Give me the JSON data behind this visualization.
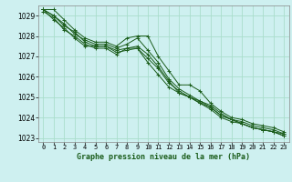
{
  "title": "Graphe pression niveau de la mer (hPa)",
  "background_color": "#cef0f0",
  "grid_color": "#aaddcc",
  "line_color": "#1a5c1a",
  "xlim": [
    -0.5,
    23.5
  ],
  "ylim": [
    1022.8,
    1029.5
  ],
  "yticks": [
    1023,
    1024,
    1025,
    1026,
    1027,
    1028,
    1029
  ],
  "xticks": [
    0,
    1,
    2,
    3,
    4,
    5,
    6,
    7,
    8,
    9,
    10,
    11,
    12,
    13,
    14,
    15,
    16,
    17,
    18,
    19,
    20,
    21,
    22,
    23
  ],
  "series": [
    {
      "x": [
        0,
        1,
        2,
        3,
        4,
        5,
        6,
        7,
        8,
        9,
        10,
        11,
        12,
        13,
        14,
        15,
        16,
        17,
        18,
        19,
        20,
        21,
        22,
        23
      ],
      "y": [
        1029.3,
        1029.3,
        1028.8,
        1028.3,
        1027.9,
        1027.7,
        1027.7,
        1027.5,
        1027.9,
        1028.0,
        1028.0,
        1027.0,
        1026.3,
        1025.6,
        1025.6,
        1025.3,
        1024.7,
        1024.3,
        1024.0,
        1023.9,
        1023.7,
        1023.6,
        1023.5,
        1023.3
      ]
    },
    {
      "x": [
        0,
        1,
        2,
        3,
        4,
        5,
        6,
        7,
        8,
        9,
        10,
        11,
        12,
        13,
        14,
        15,
        16,
        17,
        18,
        19,
        20,
        21,
        22,
        23
      ],
      "y": [
        1029.3,
        1029.0,
        1028.6,
        1028.1,
        1027.8,
        1027.6,
        1027.6,
        1027.4,
        1027.6,
        1027.9,
        1027.3,
        1026.7,
        1025.9,
        1025.4,
        1025.1,
        1024.8,
        1024.5,
        1024.1,
        1023.9,
        1023.7,
        1023.5,
        1023.4,
        1023.3,
        1023.2
      ]
    },
    {
      "x": [
        0,
        1,
        2,
        3,
        4,
        5,
        6,
        7,
        8,
        9,
        10,
        11,
        12,
        13,
        14,
        15,
        16,
        17,
        18,
        19,
        20,
        21,
        22,
        23
      ],
      "y": [
        1029.3,
        1028.8,
        1028.4,
        1027.9,
        1027.5,
        1027.5,
        1027.5,
        1027.3,
        1027.4,
        1027.4,
        1026.7,
        1026.1,
        1025.5,
        1025.2,
        1025.0,
        1024.7,
        1024.4,
        1024.0,
        1023.8,
        1023.7,
        1023.5,
        1023.4,
        1023.3,
        1023.1
      ]
    },
    {
      "x": [
        0,
        1,
        2,
        3,
        4,
        5,
        6,
        7,
        8,
        9,
        10,
        11,
        12,
        13,
        14,
        15,
        16,
        17,
        18,
        19,
        20,
        21,
        22,
        23
      ],
      "y": [
        1029.3,
        1029.0,
        1028.5,
        1028.2,
        1027.7,
        1027.5,
        1027.5,
        1027.2,
        1027.3,
        1027.4,
        1026.9,
        1026.4,
        1025.7,
        1025.3,
        1025.0,
        1024.7,
        1024.5,
        1024.1,
        1023.9,
        1023.8,
        1023.6,
        1023.5,
        1023.4,
        1023.2
      ]
    },
    {
      "x": [
        0,
        1,
        2,
        3,
        4,
        5,
        6,
        7,
        8,
        9,
        10,
        11,
        12,
        13,
        14,
        15,
        16,
        17,
        18,
        19,
        20,
        21,
        22,
        23
      ],
      "y": [
        1029.2,
        1028.9,
        1028.3,
        1028.0,
        1027.6,
        1027.4,
        1027.4,
        1027.1,
        1027.4,
        1027.5,
        1027.1,
        1026.5,
        1025.8,
        1025.2,
        1025.0,
        1024.8,
        1024.6,
        1024.2,
        1023.9,
        1023.7,
        1023.5,
        1023.4,
        1023.3,
        1023.1
      ]
    }
  ],
  "xlabel_fontsize": 6.0,
  "ylabel_fontsize": 5.5,
  "tick_fontsize": 5.0,
  "linewidth": 0.7,
  "markersize": 2.5
}
